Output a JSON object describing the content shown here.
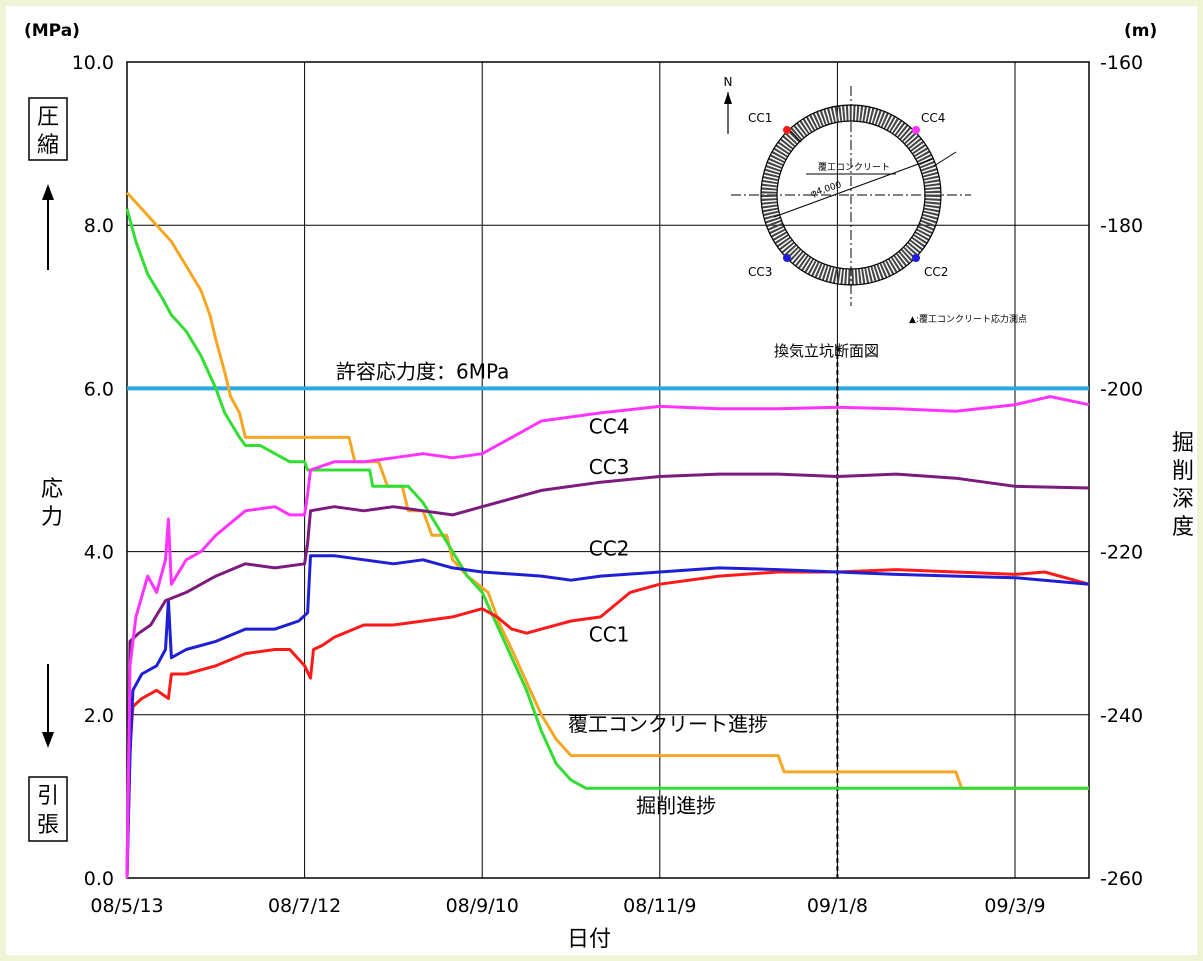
{
  "chart_data": {
    "type": "line",
    "y_unit": "(MPa)",
    "y2_unit": "(m)",
    "xlabel": "日付",
    "ylabel_chars": [
      "応",
      "力"
    ],
    "y2label_chars": [
      "掘",
      "削",
      "深",
      "度"
    ],
    "compression_chars": [
      "圧",
      "縮"
    ],
    "tension_chars": [
      "引",
      "張"
    ],
    "x_ticks": [
      "08/5/13",
      "08/7/12",
      "08/9/10",
      "08/11/9",
      "09/1/8",
      "09/3/9"
    ],
    "x_tick_days": [
      0,
      60,
      120,
      180,
      240,
      300
    ],
    "x_range_days": [
      0,
      325
    ],
    "y_ticks": [
      "0.0",
      "2.0",
      "4.0",
      "6.0",
      "8.0",
      "10.0"
    ],
    "y_range": [
      0,
      10
    ],
    "y2_ticks": [
      "-160",
      "-180",
      "-200",
      "-220",
      "-240",
      "-260"
    ],
    "y2_range": [
      -260,
      -160
    ],
    "grid": true,
    "allowable_stress": {
      "label": "許容応力度：6MPa",
      "value": 6,
      "color": "#29abe2"
    },
    "vertical_marker_day": 240,
    "series": [
      {
        "name": "CC1",
        "axis": "left",
        "color": "#ff1a1a",
        "label_day": 156,
        "label_y": 2.9,
        "points": [
          [
            0,
            0
          ],
          [
            1,
            1.6
          ],
          [
            2,
            2.1
          ],
          [
            5,
            2.2
          ],
          [
            10,
            2.3
          ],
          [
            14,
            2.2
          ],
          [
            15,
            2.5
          ],
          [
            20,
            2.5
          ],
          [
            30,
            2.6
          ],
          [
            40,
            2.75
          ],
          [
            50,
            2.8
          ],
          [
            55,
            2.8
          ],
          [
            60,
            2.6
          ],
          [
            62,
            2.45
          ],
          [
            63,
            2.8
          ],
          [
            66,
            2.85
          ],
          [
            70,
            2.95
          ],
          [
            80,
            3.1
          ],
          [
            90,
            3.1
          ],
          [
            100,
            3.15
          ],
          [
            110,
            3.2
          ],
          [
            120,
            3.3
          ],
          [
            125,
            3.2
          ],
          [
            130,
            3.05
          ],
          [
            135,
            3.0
          ],
          [
            140,
            3.05
          ],
          [
            150,
            3.15
          ],
          [
            160,
            3.2
          ],
          [
            165,
            3.35
          ],
          [
            170,
            3.5
          ],
          [
            180,
            3.6
          ],
          [
            200,
            3.7
          ],
          [
            220,
            3.75
          ],
          [
            240,
            3.75
          ],
          [
            260,
            3.78
          ],
          [
            280,
            3.75
          ],
          [
            300,
            3.72
          ],
          [
            310,
            3.75
          ],
          [
            325,
            3.6
          ]
        ]
      },
      {
        "name": "CC2",
        "axis": "left",
        "color": "#1f1fd6",
        "label_day": 156,
        "label_y": 3.95,
        "points": [
          [
            0,
            0
          ],
          [
            1,
            1.5
          ],
          [
            2,
            2.3
          ],
          [
            5,
            2.5
          ],
          [
            10,
            2.6
          ],
          [
            13,
            2.8
          ],
          [
            14,
            3.4
          ],
          [
            15,
            2.7
          ],
          [
            20,
            2.8
          ],
          [
            30,
            2.9
          ],
          [
            40,
            3.05
          ],
          [
            50,
            3.05
          ],
          [
            58,
            3.15
          ],
          [
            61,
            3.25
          ],
          [
            62,
            3.95
          ],
          [
            70,
            3.95
          ],
          [
            80,
            3.9
          ],
          [
            90,
            3.85
          ],
          [
            100,
            3.9
          ],
          [
            110,
            3.8
          ],
          [
            120,
            3.75
          ],
          [
            140,
            3.7
          ],
          [
            150,
            3.65
          ],
          [
            160,
            3.7
          ],
          [
            180,
            3.75
          ],
          [
            200,
            3.8
          ],
          [
            220,
            3.78
          ],
          [
            240,
            3.75
          ],
          [
            260,
            3.72
          ],
          [
            280,
            3.7
          ],
          [
            300,
            3.68
          ],
          [
            325,
            3.6
          ]
        ]
      },
      {
        "name": "CC3",
        "axis": "left",
        "color": "#7d1a7d",
        "label_day": 156,
        "label_y": 4.95,
        "points": [
          [
            0,
            0
          ],
          [
            1,
            2.9
          ],
          [
            4,
            3.0
          ],
          [
            8,
            3.1
          ],
          [
            13,
            3.4
          ],
          [
            20,
            3.5
          ],
          [
            30,
            3.7
          ],
          [
            40,
            3.85
          ],
          [
            50,
            3.8
          ],
          [
            60,
            3.85
          ],
          [
            61,
            4.1
          ],
          [
            62,
            4.5
          ],
          [
            70,
            4.55
          ],
          [
            80,
            4.5
          ],
          [
            90,
            4.55
          ],
          [
            100,
            4.5
          ],
          [
            110,
            4.45
          ],
          [
            120,
            4.55
          ],
          [
            140,
            4.75
          ],
          [
            160,
            4.85
          ],
          [
            180,
            4.92
          ],
          [
            200,
            4.95
          ],
          [
            220,
            4.95
          ],
          [
            240,
            4.92
          ],
          [
            260,
            4.95
          ],
          [
            280,
            4.9
          ],
          [
            300,
            4.8
          ],
          [
            325,
            4.78
          ]
        ]
      },
      {
        "name": "CC4",
        "axis": "left",
        "color": "#ff33ff",
        "label_day": 156,
        "label_y": 5.45,
        "points": [
          [
            0,
            0
          ],
          [
            1,
            2.6
          ],
          [
            3,
            3.2
          ],
          [
            7,
            3.7
          ],
          [
            10,
            3.5
          ],
          [
            13,
            3.9
          ],
          [
            14,
            4.4
          ],
          [
            15,
            3.6
          ],
          [
            20,
            3.9
          ],
          [
            25,
            4.0
          ],
          [
            30,
            4.2
          ],
          [
            40,
            4.5
          ],
          [
            50,
            4.55
          ],
          [
            55,
            4.45
          ],
          [
            60,
            4.45
          ],
          [
            61,
            4.7
          ],
          [
            62,
            5.0
          ],
          [
            70,
            5.1
          ],
          [
            80,
            5.1
          ],
          [
            90,
            5.15
          ],
          [
            100,
            5.2
          ],
          [
            110,
            5.15
          ],
          [
            120,
            5.2
          ],
          [
            130,
            5.4
          ],
          [
            140,
            5.6
          ],
          [
            160,
            5.7
          ],
          [
            180,
            5.78
          ],
          [
            200,
            5.75
          ],
          [
            220,
            5.75
          ],
          [
            240,
            5.77
          ],
          [
            260,
            5.75
          ],
          [
            280,
            5.72
          ],
          [
            300,
            5.8
          ],
          [
            312,
            5.9
          ],
          [
            325,
            5.8
          ]
        ]
      },
      {
        "name": "覆工コンクリート進捗",
        "axis": "right",
        "color": "#f5a623",
        "label_day": 149,
        "label_y2": -242,
        "points": [
          [
            0,
            -176
          ],
          [
            5,
            -178
          ],
          [
            10,
            -180
          ],
          [
            15,
            -182
          ],
          [
            20,
            -185
          ],
          [
            25,
            -188
          ],
          [
            28,
            -191
          ],
          [
            30,
            -194
          ],
          [
            33,
            -198
          ],
          [
            35,
            -201
          ],
          [
            38,
            -203
          ],
          [
            40,
            -206
          ],
          [
            55,
            -206
          ],
          [
            75,
            -206
          ],
          [
            77,
            -209
          ],
          [
            85,
            -209
          ],
          [
            88,
            -212
          ],
          [
            93,
            -212
          ],
          [
            95,
            -215
          ],
          [
            100,
            -215
          ],
          [
            103,
            -218
          ],
          [
            108,
            -218
          ],
          [
            110,
            -221
          ],
          [
            115,
            -223
          ],
          [
            122,
            -225
          ],
          [
            126,
            -229
          ],
          [
            130,
            -232
          ],
          [
            135,
            -236
          ],
          [
            140,
            -240
          ],
          [
            145,
            -243
          ],
          [
            150,
            -245
          ],
          [
            178,
            -245
          ],
          [
            220,
            -245
          ],
          [
            222,
            -247
          ],
          [
            280,
            -247
          ],
          [
            282,
            -249
          ],
          [
            325,
            -249
          ]
        ]
      },
      {
        "name": "掘削進捗",
        "axis": "right",
        "color": "#33dd33",
        "label_day": 172,
        "label_y2": -252,
        "points": [
          [
            0,
            -178
          ],
          [
            3,
            -182
          ],
          [
            7,
            -186
          ],
          [
            12,
            -189
          ],
          [
            15,
            -191
          ],
          [
            20,
            -193
          ],
          [
            25,
            -196
          ],
          [
            30,
            -200
          ],
          [
            33,
            -203
          ],
          [
            38,
            -206
          ],
          [
            40,
            -207
          ],
          [
            45,
            -207
          ],
          [
            50,
            -208
          ],
          [
            55,
            -209
          ],
          [
            60,
            -209
          ],
          [
            61,
            -210
          ],
          [
            70,
            -210
          ],
          [
            82,
            -210
          ],
          [
            83,
            -212
          ],
          [
            95,
            -212
          ],
          [
            100,
            -214
          ],
          [
            105,
            -217
          ],
          [
            110,
            -220
          ],
          [
            115,
            -223
          ],
          [
            120,
            -225
          ],
          [
            125,
            -229
          ],
          [
            130,
            -233
          ],
          [
            135,
            -237
          ],
          [
            140,
            -242
          ],
          [
            145,
            -246
          ],
          [
            150,
            -248
          ],
          [
            155,
            -249
          ],
          [
            160,
            -249
          ],
          [
            170,
            -249
          ],
          [
            200,
            -249
          ],
          [
            240,
            -249
          ],
          [
            280,
            -249
          ],
          [
            325,
            -249
          ]
        ]
      }
    ]
  },
  "inset": {
    "north": "N",
    "cc1": "CC1",
    "cc2": "CC2",
    "cc3": "CC3",
    "cc4": "CC4",
    "lining_label": "覆工コンクリート",
    "diameter_label": "φ4,000",
    "legend": "▲:覆工コンクリート応力測点",
    "caption": "換気立坑断面図"
  }
}
